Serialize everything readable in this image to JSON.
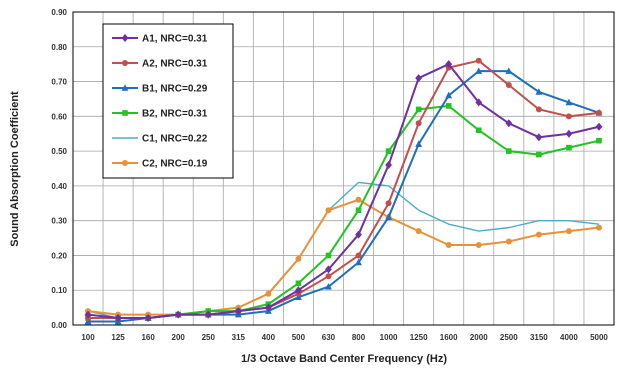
{
  "chart_data": {
    "type": "line",
    "xlabel": "1/3 Octave Band Center Frequency (Hz)",
    "ylabel": "Sound Absorption Coefficient",
    "categories": [
      "100",
      "125",
      "160",
      "200",
      "250",
      "315",
      "400",
      "500",
      "630",
      "800",
      "1000",
      "1250",
      "1600",
      "2000",
      "2500",
      "3150",
      "4000",
      "5000"
    ],
    "ylim": [
      0,
      0.9
    ],
    "yticks": [
      "0.00",
      "0.10",
      "0.20",
      "0.30",
      "0.40",
      "0.50",
      "0.60",
      "0.70",
      "0.80",
      "0.90"
    ],
    "grid": true,
    "legend_position": "top-left",
    "series": [
      {
        "name": "A1, NRC=0.31",
        "color": "#7030a0",
        "marker": "diamond",
        "values": [
          0.03,
          0.02,
          0.02,
          0.03,
          0.03,
          0.04,
          0.05,
          0.1,
          0.16,
          0.26,
          0.46,
          0.71,
          0.75,
          0.64,
          0.58,
          0.54,
          0.55,
          0.57
        ]
      },
      {
        "name": "A2, NRC=0.31",
        "color": "#c0504d",
        "marker": "circle",
        "values": [
          0.02,
          0.02,
          0.02,
          0.03,
          0.03,
          0.04,
          0.05,
          0.09,
          0.14,
          0.2,
          0.35,
          0.58,
          0.74,
          0.76,
          0.69,
          0.62,
          0.6,
          0.61
        ]
      },
      {
        "name": "B1, NRC=0.29",
        "color": "#1f6fbf",
        "marker": "triangle",
        "values": [
          0.01,
          0.01,
          0.02,
          0.03,
          0.03,
          0.03,
          0.04,
          0.08,
          0.11,
          0.18,
          0.31,
          0.52,
          0.66,
          0.73,
          0.73,
          0.67,
          0.64,
          0.61
        ]
      },
      {
        "name": "B2, NRC=0.31",
        "color": "#22c322",
        "marker": "square",
        "values": [
          0.02,
          0.02,
          0.02,
          0.03,
          0.04,
          0.04,
          0.06,
          0.12,
          0.2,
          0.33,
          0.5,
          0.62,
          0.63,
          0.56,
          0.5,
          0.49,
          0.51,
          0.53
        ]
      },
      {
        "name": "C1, NRC=0.22",
        "color": "#4bacc6",
        "marker": "none",
        "values": [
          0.04,
          0.02,
          0.02,
          0.03,
          0.04,
          0.05,
          0.09,
          0.19,
          0.33,
          0.41,
          0.4,
          0.33,
          0.29,
          0.27,
          0.28,
          0.3,
          0.3,
          0.29
        ]
      },
      {
        "name": "C2, NRC=0.19",
        "color": "#e8913a",
        "marker": "circle",
        "values": [
          0.04,
          0.03,
          0.03,
          0.03,
          0.04,
          0.05,
          0.09,
          0.19,
          0.33,
          0.36,
          0.31,
          0.27,
          0.23,
          0.23,
          0.24,
          0.26,
          0.27,
          0.28
        ]
      }
    ]
  }
}
